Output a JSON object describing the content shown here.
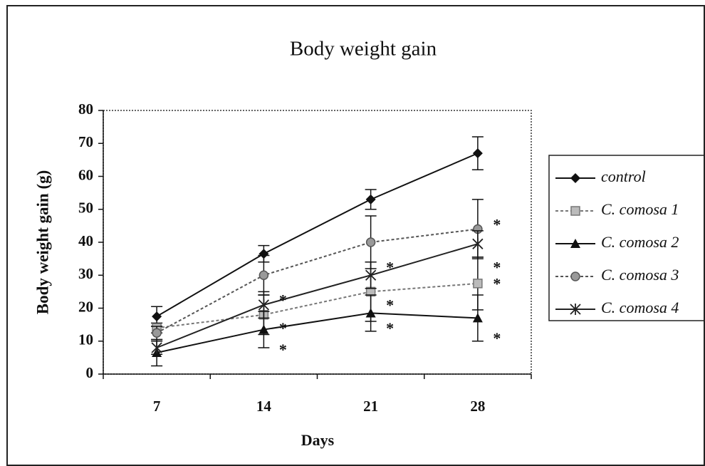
{
  "chart_data": {
    "type": "line",
    "title": "Body weight gain",
    "x_label": "Days",
    "y_label": "Body weight gain (g)",
    "categories": [
      "7",
      "14",
      "21",
      "28"
    ],
    "ylim": [
      0,
      80
    ],
    "yticks": [
      0,
      10,
      20,
      30,
      40,
      50,
      60,
      70,
      80
    ],
    "legend": "right",
    "series": [
      {
        "name": "control",
        "color": "#111111",
        "marker": "diamond",
        "dashed": false,
        "values": [
          17.5,
          36.5,
          53,
          67
        ],
        "errors": [
          3,
          2.5,
          3,
          5
        ]
      },
      {
        "name": "C. comosa 1",
        "color": "#777777",
        "marker": "square",
        "dashed": true,
        "values": [
          14,
          18,
          25,
          27.5
        ],
        "errors": [
          1.5,
          6,
          9,
          8
        ]
      },
      {
        "name": "C. comosa 2",
        "color": "#111111",
        "marker": "triangle",
        "dashed": false,
        "values": [
          6.5,
          13.5,
          18.5,
          17
        ],
        "errors": [
          4,
          5.5,
          5.5,
          7
        ]
      },
      {
        "name": "C. comosa 3",
        "color": "#555555",
        "marker": "circle",
        "dashed": true,
        "values": [
          12.5,
          30,
          40,
          44
        ],
        "errors": [
          2,
          6,
          8,
          9
        ]
      },
      {
        "name": "C. comosa 4",
        "color": "#222222",
        "marker": "star",
        "dashed": false,
        "values": [
          8,
          21,
          30,
          39.5
        ],
        "errors": [
          2,
          4,
          4,
          4
        ]
      }
    ],
    "annotations": [
      {
        "text": "*",
        "x": "14",
        "y": 23
      },
      {
        "text": "*",
        "x": "14",
        "y": 14.5
      },
      {
        "text": "*",
        "x": "14",
        "y": 8
      },
      {
        "text": "*",
        "x": "21",
        "y": 33
      },
      {
        "text": "*",
        "x": "21",
        "y": 21.5
      },
      {
        "text": "*",
        "x": "21",
        "y": 14.5
      },
      {
        "text": "*",
        "x": "28",
        "y": 46
      },
      {
        "text": "*",
        "x": "28",
        "y": 33
      },
      {
        "text": "*",
        "x": "28",
        "y": 28
      },
      {
        "text": "*",
        "x": "28",
        "y": 11.5
      }
    ]
  }
}
